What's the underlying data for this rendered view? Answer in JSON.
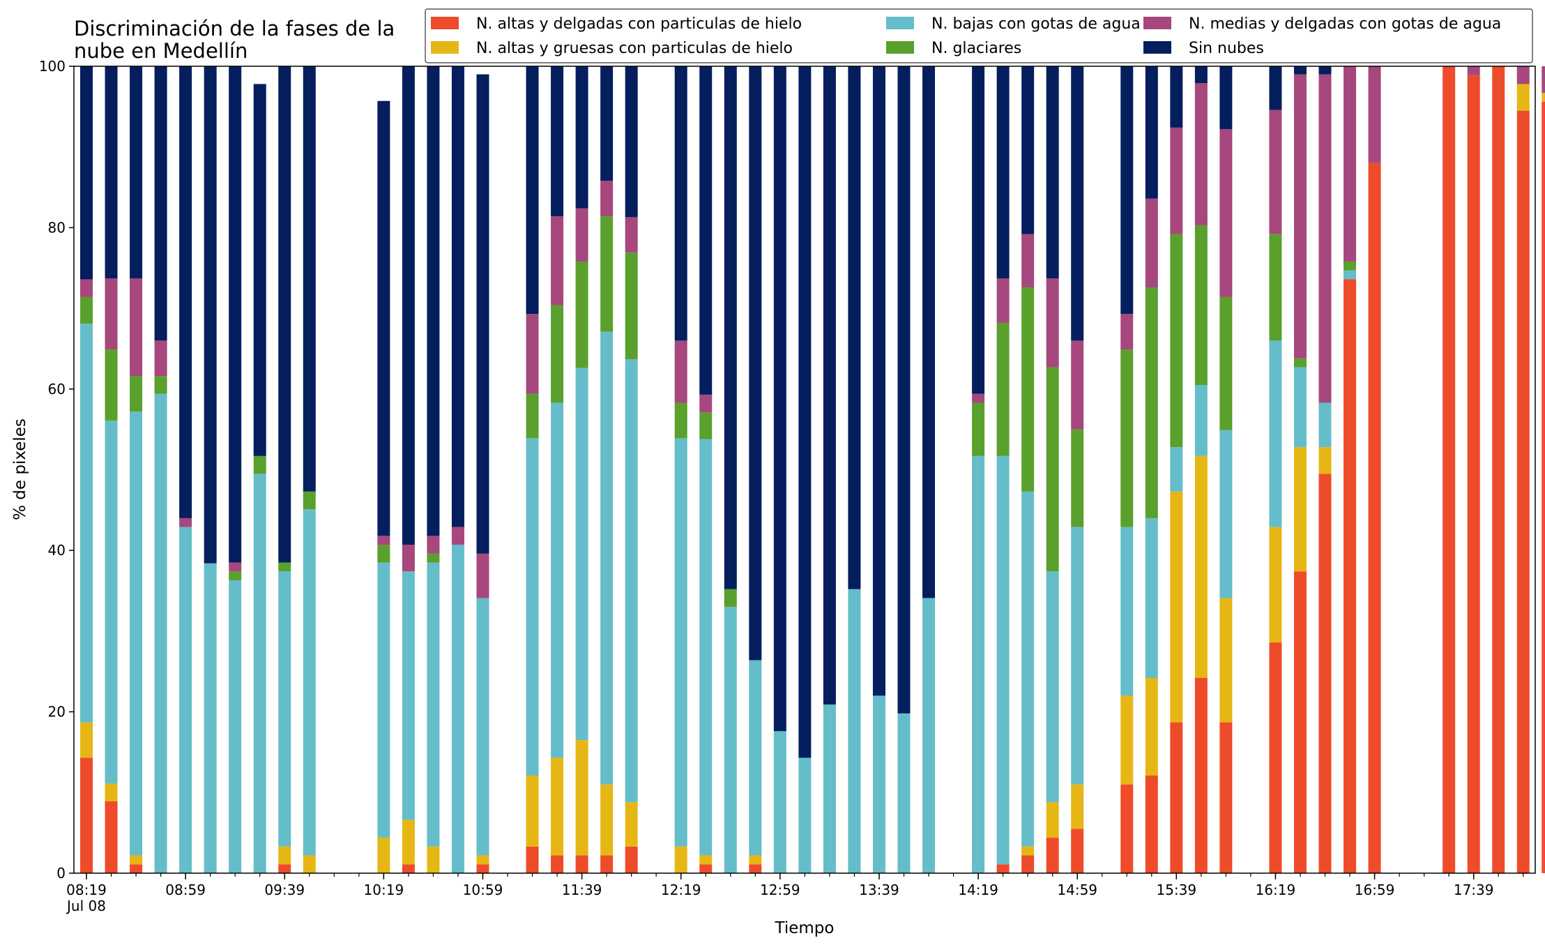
{
  "chart_data": {
    "type": "bar",
    "stacked": true,
    "title_lines": [
      "Discriminación de la fases de la",
      "nube en Medellín"
    ],
    "xlabel": "Tiempo",
    "ylabel": "% de pixeles",
    "ylim": [
      0,
      100
    ],
    "yticks": [
      0,
      20,
      40,
      60,
      80,
      100
    ],
    "grid": false,
    "legend_position": "top-right",
    "x_start": "08:19",
    "x_step_minutes": 10,
    "x_end": "18:09",
    "x_tick_labels": [
      "08:19",
      "08:59",
      "09:39",
      "10:19",
      "10:59",
      "11:39",
      "12:19",
      "12:59",
      "13:39",
      "14:19",
      "14:59",
      "15:39",
      "16:19",
      "16:59",
      "17:39"
    ],
    "x_tick_sublabel": "Jul 08",
    "series": [
      {
        "name": "N. altas y delgadas con particulas de hielo",
        "color": "#ee4b2b",
        "values": [
          14.3,
          8.9,
          1.1,
          0,
          0,
          0,
          0,
          0,
          1.1,
          0,
          null,
          null,
          0,
          1.1,
          0,
          0,
          1.1,
          null,
          3.3,
          2.2,
          2.2,
          2.2,
          3.3,
          null,
          0,
          1.1,
          0,
          1.1,
          0,
          0,
          0,
          0,
          0,
          0,
          0,
          null,
          0,
          1.1,
          2.2,
          4.4,
          5.5,
          null,
          11.0,
          12.1,
          18.7,
          24.2,
          18.7,
          null,
          28.6,
          37.4,
          49.5,
          73.6,
          88.0,
          null,
          null,
          100,
          98.9,
          100,
          94.5,
          95.6
        ]
      },
      {
        "name": "N. altas y gruesas con particulas de hielo",
        "color": "#e6b714",
        "values": [
          4.4,
          2.2,
          1.1,
          0,
          0,
          0,
          0,
          0,
          2.2,
          2.2,
          null,
          null,
          4.4,
          5.5,
          3.3,
          0,
          1.1,
          null,
          8.8,
          12.1,
          14.3,
          8.8,
          5.5,
          null,
          3.3,
          1.1,
          0,
          1.1,
          0,
          0,
          0,
          0,
          0,
          0,
          0,
          null,
          0,
          0,
          1.1,
          4.4,
          5.5,
          null,
          11.0,
          12.1,
          28.6,
          27.5,
          15.4,
          null,
          14.3,
          15.4,
          3.3,
          0,
          0,
          null,
          null,
          0,
          0,
          0,
          3.3,
          1.1
        ]
      },
      {
        "name": "N. bajas con gotas de agua",
        "color": "#65bdca",
        "values": [
          49.4,
          45.0,
          55.0,
          59.4,
          42.9,
          38.4,
          36.3,
          49.5,
          34.1,
          42.9,
          null,
          null,
          34.1,
          30.8,
          35.2,
          40.7,
          31.9,
          null,
          41.8,
          44.0,
          46.1,
          56.1,
          54.9,
          null,
          50.6,
          51.6,
          33.0,
          24.2,
          17.6,
          14.3,
          20.9,
          35.2,
          22.0,
          19.8,
          34.1,
          null,
          51.7,
          50.6,
          44.0,
          28.6,
          31.9,
          null,
          20.9,
          19.8,
          5.5,
          8.8,
          20.8,
          null,
          23.1,
          9.9,
          5.5,
          1.1,
          0,
          null,
          null,
          0,
          0,
          0,
          0,
          0
        ]
      },
      {
        "name": "N. glaciares",
        "color": "#5aa02c",
        "values": [
          3.3,
          8.8,
          4.4,
          2.2,
          0,
          0,
          1.1,
          2.2,
          1.1,
          2.2,
          null,
          null,
          2.2,
          0,
          1.1,
          0,
          0,
          null,
          5.5,
          12.1,
          13.2,
          14.3,
          13.2,
          null,
          4.4,
          3.3,
          2.2,
          0,
          0,
          0,
          0,
          0,
          0,
          0,
          0,
          null,
          6.6,
          16.5,
          25.3,
          25.3,
          12.1,
          null,
          22.0,
          28.6,
          26.4,
          19.8,
          16.5,
          null,
          13.2,
          1.1,
          0,
          1.1,
          0,
          null,
          null,
          0,
          0,
          0,
          0,
          0
        ]
      },
      {
        "name": "N. medias y delgadas con gotas de agua",
        "color": "#a6477d",
        "values": [
          2.2,
          8.8,
          12.1,
          4.4,
          1.1,
          0,
          1.1,
          0,
          0,
          0,
          null,
          null,
          1.1,
          3.3,
          2.2,
          2.2,
          5.5,
          null,
          9.9,
          11.0,
          6.6,
          4.4,
          4.4,
          null,
          7.7,
          2.2,
          0,
          0,
          0,
          0,
          0,
          0,
          0,
          0,
          0,
          null,
          1.1,
          5.5,
          6.6,
          11.0,
          11.0,
          null,
          4.4,
          11.0,
          13.2,
          17.6,
          20.8,
          null,
          15.4,
          35.2,
          40.7,
          24.2,
          12.0,
          null,
          null,
          0,
          1.1,
          0,
          2.2,
          3.3
        ]
      },
      {
        "name": "Sin nubes",
        "color": "#041e5e",
        "values": [
          26.4,
          26.3,
          26.3,
          34.0,
          56.0,
          61.6,
          61.5,
          46.1,
          61.5,
          52.7,
          null,
          null,
          53.9,
          59.3,
          58.2,
          57.1,
          59.4,
          null,
          30.7,
          18.6,
          17.6,
          14.2,
          18.7,
          null,
          34.0,
          40.7,
          64.8,
          73.6,
          82.4,
          85.7,
          79.1,
          64.8,
          78.0,
          80.2,
          65.9,
          null,
          40.6,
          26.3,
          20.8,
          26.3,
          34.0,
          null,
          30.7,
          16.4,
          7.6,
          2.1,
          7.8,
          null,
          5.4,
          1.0,
          1.0,
          0,
          0,
          null,
          null,
          0,
          0,
          0,
          0,
          0
        ]
      }
    ]
  }
}
